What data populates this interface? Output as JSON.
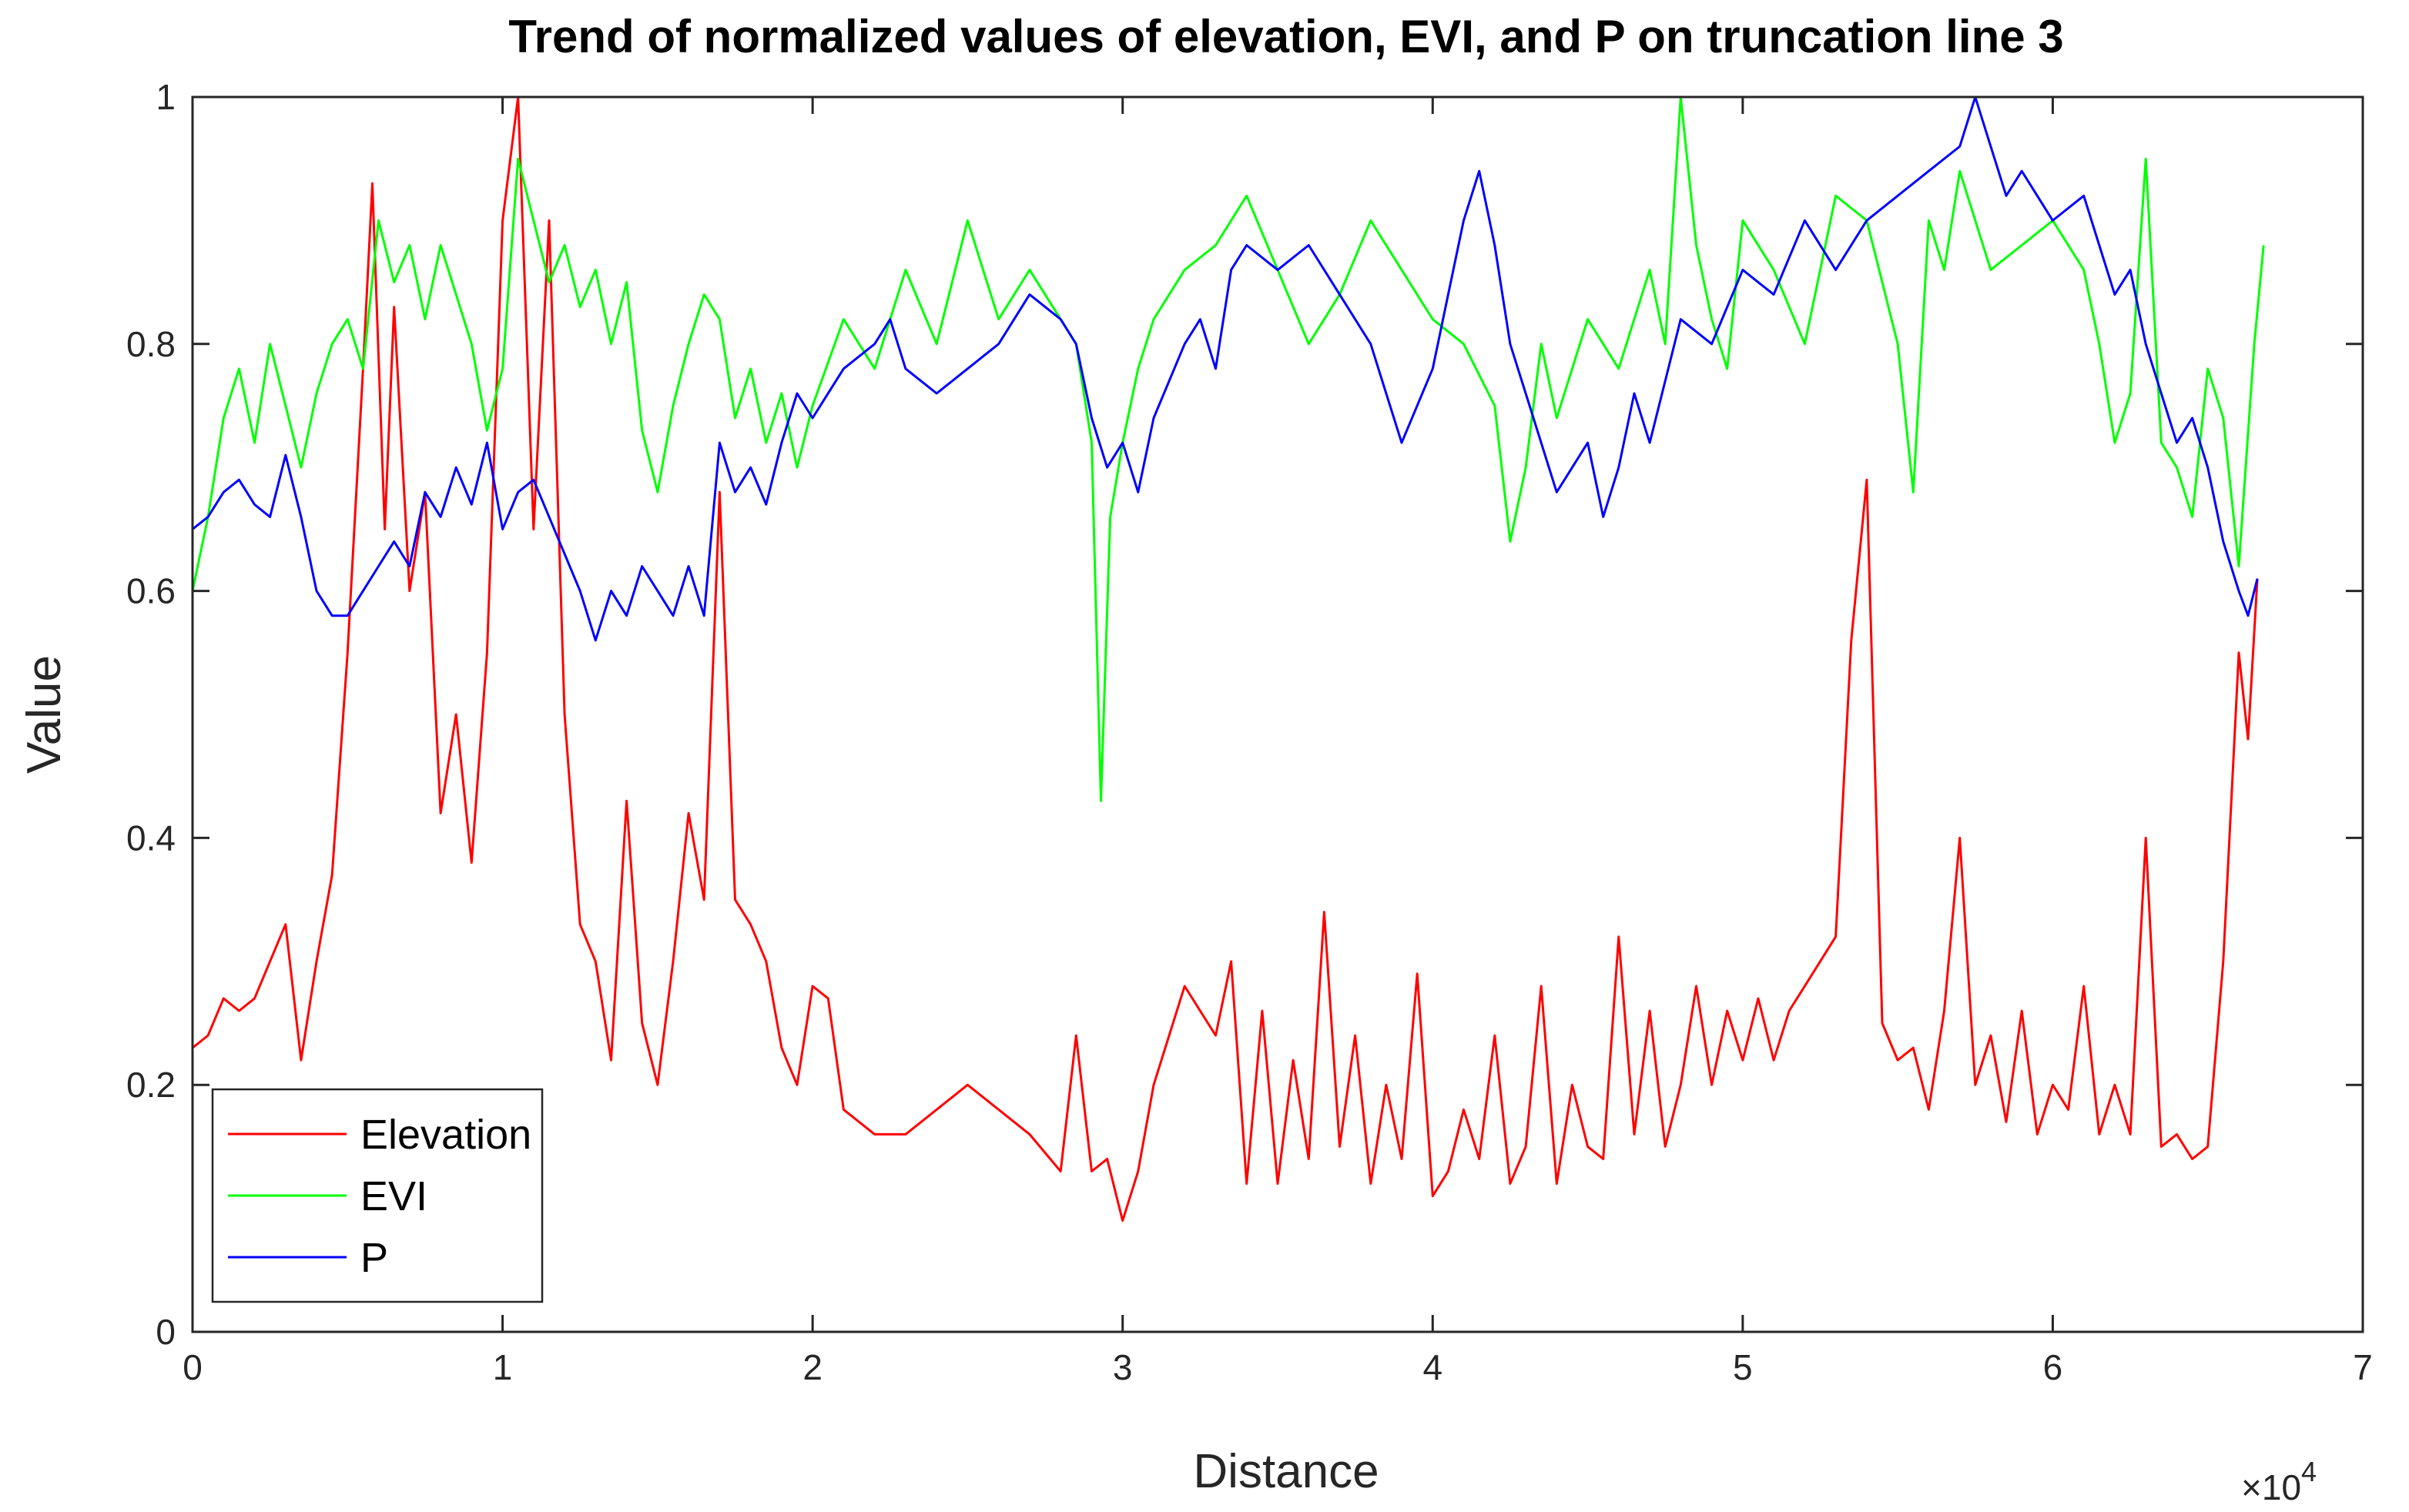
{
  "chart_data": {
    "type": "line",
    "title": "Trend of normalized values of elevation, EVI, and P on truncation line 3",
    "xlabel": "Distance",
    "ylabel": "Value",
    "xlim": [
      0,
      70000
    ],
    "ylim": [
      0,
      1
    ],
    "x_ticks": [
      0,
      10000,
      20000,
      30000,
      40000,
      50000,
      60000,
      70000
    ],
    "x_tick_labels": [
      "0",
      "1",
      "2",
      "3",
      "4",
      "5",
      "6",
      "7"
    ],
    "x_exponent_label": "×10",
    "x_exponent_power": "4",
    "y_ticks": [
      0,
      0.2,
      0.4,
      0.6,
      0.8,
      1
    ],
    "y_tick_labels": [
      "0",
      "0.2",
      "0.4",
      "0.6",
      "0.8",
      "1"
    ],
    "grid": false,
    "legend_position": "bottom-left",
    "series": [
      {
        "name": "Elevation",
        "color": "#ff0000",
        "x": [
          0,
          500,
          1000,
          1500,
          2000,
          2500,
          3000,
          3500,
          4000,
          4500,
          5000,
          5500,
          5800,
          6200,
          6500,
          7000,
          7500,
          8000,
          8500,
          9000,
          9500,
          10000,
          10500,
          11000,
          11500,
          12000,
          12500,
          13000,
          13500,
          14000,
          14500,
          15000,
          15500,
          16000,
          16500,
          17000,
          17500,
          18000,
          18500,
          19000,
          19500,
          20000,
          20500,
          21000,
          22000,
          23000,
          24000,
          25000,
          26000,
          27000,
          28000,
          28500,
          29000,
          29500,
          30000,
          30500,
          31000,
          32000,
          33000,
          33500,
          34000,
          34500,
          35000,
          35500,
          36000,
          36500,
          37000,
          37500,
          38000,
          38500,
          39000,
          39500,
          40000,
          40500,
          41000,
          41500,
          42000,
          42500,
          43000,
          43500,
          44000,
          44500,
          45000,
          45500,
          46000,
          46500,
          47000,
          47500,
          48000,
          48500,
          49000,
          49500,
          50000,
          50500,
          51000,
          51500,
          52000,
          52500,
          53000,
          53500,
          54000,
          54500,
          55000,
          55500,
          56000,
          56500,
          57000,
          57500,
          58000,
          58500,
          59000,
          59500,
          60000,
          60500,
          61000,
          61500,
          62000,
          62500,
          63000,
          63500,
          64000,
          64500,
          65000,
          65500,
          66000,
          66300,
          66600
        ],
        "values": [
          0.23,
          0.24,
          0.27,
          0.26,
          0.27,
          0.3,
          0.33,
          0.22,
          0.3,
          0.37,
          0.55,
          0.78,
          0.93,
          0.65,
          0.83,
          0.6,
          0.68,
          0.42,
          0.5,
          0.38,
          0.55,
          0.9,
          1.0,
          0.65,
          0.9,
          0.5,
          0.33,
          0.3,
          0.22,
          0.43,
          0.25,
          0.2,
          0.3,
          0.42,
          0.35,
          0.68,
          0.35,
          0.33,
          0.3,
          0.23,
          0.2,
          0.28,
          0.27,
          0.18,
          0.16,
          0.16,
          0.18,
          0.2,
          0.18,
          0.16,
          0.13,
          0.24,
          0.13,
          0.14,
          0.09,
          0.13,
          0.2,
          0.28,
          0.24,
          0.3,
          0.12,
          0.26,
          0.12,
          0.22,
          0.14,
          0.34,
          0.15,
          0.24,
          0.12,
          0.2,
          0.14,
          0.29,
          0.11,
          0.13,
          0.18,
          0.14,
          0.24,
          0.12,
          0.15,
          0.28,
          0.12,
          0.2,
          0.15,
          0.14,
          0.32,
          0.16,
          0.26,
          0.15,
          0.2,
          0.28,
          0.2,
          0.26,
          0.22,
          0.27,
          0.22,
          0.26,
          0.28,
          0.3,
          0.32,
          0.56,
          0.69,
          0.25,
          0.22,
          0.23,
          0.18,
          0.26,
          0.4,
          0.2,
          0.24,
          0.17,
          0.26,
          0.16,
          0.2,
          0.18,
          0.28,
          0.16,
          0.2,
          0.16,
          0.4,
          0.15,
          0.16,
          0.14,
          0.15,
          0.3,
          0.55,
          0.48,
          0.61
        ]
      },
      {
        "name": "EVI",
        "color": "#00ff00",
        "x": [
          0,
          500,
          1000,
          1500,
          2000,
          2500,
          3000,
          3500,
          4000,
          4500,
          5000,
          5500,
          6000,
          6500,
          7000,
          7500,
          8000,
          8500,
          9000,
          9500,
          10000,
          10500,
          11000,
          11500,
          12000,
          12500,
          13000,
          13500,
          14000,
          14500,
          15000,
          15500,
          16000,
          16500,
          17000,
          17500,
          18000,
          18500,
          19000,
          19500,
          20000,
          21000,
          22000,
          23000,
          24000,
          25000,
          26000,
          27000,
          28000,
          28500,
          29000,
          29300,
          29600,
          30000,
          30500,
          31000,
          32000,
          33000,
          34000,
          35000,
          36000,
          37000,
          38000,
          39000,
          40000,
          41000,
          42000,
          42500,
          43000,
          43500,
          44000,
          45000,
          46000,
          47000,
          47500,
          48000,
          48500,
          49000,
          49500,
          50000,
          51000,
          52000,
          53000,
          54000,
          55000,
          55500,
          56000,
          56500,
          57000,
          58000,
          59000,
          60000,
          61000,
          61500,
          62000,
          62500,
          63000,
          63500,
          64000,
          64500,
          65000,
          65500,
          66000,
          66500,
          66800
        ],
        "values": [
          0.6,
          0.66,
          0.74,
          0.78,
          0.72,
          0.8,
          0.75,
          0.7,
          0.76,
          0.8,
          0.82,
          0.78,
          0.9,
          0.85,
          0.88,
          0.82,
          0.88,
          0.84,
          0.8,
          0.73,
          0.78,
          0.95,
          0.9,
          0.85,
          0.88,
          0.83,
          0.86,
          0.8,
          0.85,
          0.73,
          0.68,
          0.75,
          0.8,
          0.84,
          0.82,
          0.74,
          0.78,
          0.72,
          0.76,
          0.7,
          0.75,
          0.82,
          0.78,
          0.86,
          0.8,
          0.9,
          0.82,
          0.86,
          0.82,
          0.8,
          0.72,
          0.43,
          0.66,
          0.72,
          0.78,
          0.82,
          0.86,
          0.88,
          0.92,
          0.86,
          0.8,
          0.84,
          0.9,
          0.86,
          0.82,
          0.8,
          0.75,
          0.64,
          0.7,
          0.8,
          0.74,
          0.82,
          0.78,
          0.86,
          0.8,
          1.0,
          0.88,
          0.82,
          0.78,
          0.9,
          0.86,
          0.8,
          0.92,
          0.9,
          0.8,
          0.68,
          0.9,
          0.86,
          0.94,
          0.86,
          0.88,
          0.9,
          0.86,
          0.8,
          0.72,
          0.76,
          0.95,
          0.72,
          0.7,
          0.66,
          0.78,
          0.74,
          0.62,
          0.8,
          0.88
        ]
      },
      {
        "name": "P",
        "color": "#0000ff",
        "x": [
          0,
          500,
          1000,
          1500,
          2000,
          2500,
          3000,
          3500,
          4000,
          4500,
          5000,
          5500,
          6000,
          6500,
          7000,
          7500,
          8000,
          8500,
          9000,
          9500,
          10000,
          10500,
          11000,
          11500,
          12000,
          12500,
          13000,
          13500,
          14000,
          14500,
          15000,
          15500,
          16000,
          16500,
          17000,
          17500,
          18000,
          18500,
          19000,
          19500,
          20000,
          21000,
          22000,
          22500,
          23000,
          24000,
          25000,
          26000,
          27000,
          28000,
          28500,
          29000,
          29500,
          30000,
          30500,
          31000,
          32000,
          32500,
          33000,
          33500,
          34000,
          35000,
          36000,
          37000,
          38000,
          38500,
          39000,
          40000,
          40500,
          41000,
          41500,
          42000,
          42500,
          43000,
          44000,
          45000,
          45500,
          46000,
          46500,
          47000,
          48000,
          49000,
          50000,
          51000,
          52000,
          53000,
          54000,
          55000,
          56000,
          57000,
          57500,
          58000,
          58500,
          59000,
          60000,
          61000,
          61500,
          62000,
          62500,
          63000,
          63500,
          64000,
          64500,
          65000,
          65500,
          66000,
          66300,
          66600
        ],
        "values": [
          0.65,
          0.66,
          0.68,
          0.69,
          0.67,
          0.66,
          0.71,
          0.66,
          0.6,
          0.58,
          0.58,
          0.6,
          0.62,
          0.64,
          0.62,
          0.68,
          0.66,
          0.7,
          0.67,
          0.72,
          0.65,
          0.68,
          0.69,
          0.66,
          0.63,
          0.6,
          0.56,
          0.6,
          0.58,
          0.62,
          0.6,
          0.58,
          0.62,
          0.58,
          0.72,
          0.68,
          0.7,
          0.67,
          0.72,
          0.76,
          0.74,
          0.78,
          0.8,
          0.82,
          0.78,
          0.76,
          0.78,
          0.8,
          0.84,
          0.82,
          0.8,
          0.74,
          0.7,
          0.72,
          0.68,
          0.74,
          0.8,
          0.82,
          0.78,
          0.86,
          0.88,
          0.86,
          0.88,
          0.84,
          0.8,
          0.76,
          0.72,
          0.78,
          0.84,
          0.9,
          0.94,
          0.88,
          0.8,
          0.76,
          0.68,
          0.72,
          0.66,
          0.7,
          0.76,
          0.72,
          0.82,
          0.8,
          0.86,
          0.84,
          0.9,
          0.86,
          0.9,
          0.92,
          0.94,
          0.96,
          1.0,
          0.96,
          0.92,
          0.94,
          0.9,
          0.92,
          0.88,
          0.84,
          0.86,
          0.8,
          0.76,
          0.72,
          0.74,
          0.7,
          0.64,
          0.6,
          0.58,
          0.61
        ]
      }
    ]
  }
}
